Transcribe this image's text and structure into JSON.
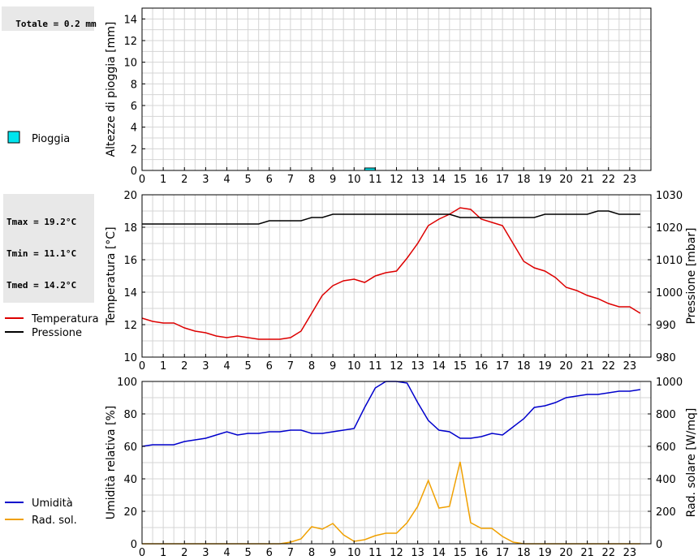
{
  "info": {
    "rain_total": "Totale = 0.2 mm",
    "temp_stats": [
      "Tmax = 19.2°C",
      "Tmin = 11.1°C",
      "Tmed = 14.2°C"
    ]
  },
  "chart_data": [
    {
      "type": "bar",
      "ylabel": "Altezze di pioggia [mm]",
      "xlim": [
        0,
        24
      ],
      "ylim": [
        0,
        15
      ],
      "yticks": [
        0,
        2,
        4,
        6,
        8,
        10,
        12,
        14
      ],
      "xticks": [
        "0",
        "1",
        "2",
        "3",
        "4",
        "5",
        "6",
        "7",
        "8",
        "9",
        "10",
        "11",
        "12",
        "13",
        "14",
        "15",
        "16",
        "17",
        "18",
        "19",
        "20",
        "21",
        "22",
        "23"
      ],
      "grid": true,
      "legend": "left",
      "series": [
        {
          "name": "Pioggia",
          "color": "#00e5ee",
          "bars": [
            {
              "x": 10.75,
              "width": 0.5,
              "value": 0.2
            }
          ]
        }
      ]
    },
    {
      "type": "line",
      "ylabel": "Temperatura [°C]",
      "y2label": "Pressione [mbar]",
      "xlim": [
        0,
        24
      ],
      "ylim": [
        10,
        20
      ],
      "y2lim": [
        980,
        1030
      ],
      "yticks": [
        10,
        12,
        14,
        16,
        18,
        20
      ],
      "y2ticks": [
        980,
        990,
        1000,
        1010,
        1020,
        1030
      ],
      "xticks": [
        "0",
        "1",
        "2",
        "3",
        "4",
        "5",
        "6",
        "7",
        "8",
        "9",
        "10",
        "11",
        "12",
        "13",
        "14",
        "15",
        "16",
        "17",
        "18",
        "19",
        "20",
        "21",
        "22",
        "23"
      ],
      "grid": true,
      "legend": "left",
      "series": [
        {
          "name": "Temperatura",
          "color": "#dd0000",
          "axis": "left",
          "x": [
            0,
            0.5,
            1,
            1.5,
            2,
            2.5,
            3,
            3.5,
            4,
            4.5,
            5,
            5.5,
            6,
            6.5,
            7,
            7.5,
            8,
            8.5,
            9,
            9.5,
            10,
            10.5,
            11,
            11.5,
            12,
            12.5,
            13,
            13.5,
            14,
            14.5,
            15,
            15.5,
            16,
            16.5,
            17,
            17.5,
            18,
            18.5,
            19,
            19.5,
            20,
            20.5,
            21,
            21.5,
            22,
            22.5,
            23,
            23.5
          ],
          "values": [
            12.4,
            12.2,
            12.1,
            12.1,
            11.8,
            11.6,
            11.5,
            11.3,
            11.2,
            11.3,
            11.2,
            11.1,
            11.1,
            11.1,
            11.2,
            11.6,
            12.7,
            13.8,
            14.4,
            14.7,
            14.8,
            14.6,
            15.0,
            15.2,
            15.3,
            16.1,
            17.0,
            18.1,
            18.5,
            18.8,
            19.2,
            19.1,
            18.5,
            18.3,
            18.1,
            17.0,
            15.9,
            15.5,
            15.3,
            14.9,
            14.3,
            14.1,
            13.8,
            13.6,
            13.3,
            13.1,
            13.1,
            12.7
          ]
        },
        {
          "name": "Pressione",
          "color": "#000000",
          "axis": "right",
          "x": [
            0,
            1,
            2,
            3,
            4,
            5,
            5.5,
            6,
            7,
            7.5,
            8,
            8.5,
            9,
            10,
            11,
            12,
            13,
            14,
            14.5,
            15,
            16,
            17,
            18,
            18.5,
            19,
            20,
            21,
            21.5,
            22,
            22.5,
            23,
            23.5
          ],
          "values": [
            1021,
            1021,
            1021,
            1021,
            1021,
            1021,
            1021,
            1022,
            1022,
            1022,
            1023,
            1023,
            1024,
            1024,
            1024,
            1024,
            1024,
            1024,
            1024,
            1023,
            1023,
            1023,
            1023,
            1023,
            1024,
            1024,
            1024,
            1025,
            1025,
            1024,
            1024,
            1024
          ]
        }
      ]
    },
    {
      "type": "line",
      "ylabel": "Umidità relativa [%]",
      "y2label": "Rad. solare [W/mq]",
      "xlim": [
        0,
        24
      ],
      "ylim": [
        0,
        100
      ],
      "y2lim": [
        0,
        1000
      ],
      "yticks": [
        0,
        20,
        40,
        60,
        80,
        100
      ],
      "y2ticks": [
        0,
        200,
        400,
        600,
        800,
        1000
      ],
      "xticks": [
        "0",
        "1",
        "2",
        "3",
        "4",
        "5",
        "6",
        "7",
        "8",
        "9",
        "10",
        "11",
        "12",
        "13",
        "14",
        "15",
        "16",
        "17",
        "18",
        "19",
        "20",
        "21",
        "22",
        "23"
      ],
      "grid": true,
      "legend": "left",
      "series": [
        {
          "name": "Umidità",
          "color": "#0000cc",
          "axis": "left",
          "x": [
            0,
            0.5,
            1,
            1.5,
            2,
            2.5,
            3,
            3.5,
            4,
            4.5,
            5,
            5.5,
            6,
            6.5,
            7,
            7.5,
            8,
            8.5,
            9,
            9.5,
            10,
            10.5,
            11,
            11.5,
            12,
            12.5,
            13,
            13.5,
            14,
            14.5,
            15,
            15.5,
            16,
            16.5,
            17,
            17.5,
            18,
            18.5,
            19,
            19.5,
            20,
            20.5,
            21,
            21.5,
            22,
            22.5,
            23,
            23.5
          ],
          "values": [
            60,
            61,
            61,
            61,
            63,
            64,
            65,
            67,
            69,
            67,
            68,
            68,
            69,
            69,
            70,
            70,
            68,
            68,
            69,
            70,
            71,
            84,
            96,
            100,
            100,
            99,
            87,
            76,
            70,
            69,
            65,
            65,
            66,
            68,
            67,
            72,
            77,
            84,
            85,
            87,
            90,
            91,
            92,
            92,
            93,
            94,
            94,
            95
          ]
        },
        {
          "name": "Rad. sol.",
          "color": "#f0a000",
          "axis": "right",
          "x": [
            0,
            0.5,
            1,
            1.5,
            2,
            2.5,
            3,
            3.5,
            4,
            4.5,
            5,
            5.5,
            6,
            6.5,
            7,
            7.5,
            8,
            8.5,
            9,
            9.5,
            10,
            10.5,
            11,
            11.5,
            12,
            12.5,
            13,
            13.5,
            14,
            14.5,
            15,
            15.5,
            16,
            16.5,
            17,
            17.5,
            18,
            18.5,
            19,
            19.5,
            20,
            20.5,
            21,
            21.5,
            22,
            22.5,
            23,
            23.5
          ],
          "values": [
            0,
            0,
            0,
            0,
            0,
            0,
            0,
            0,
            0,
            0,
            0,
            0,
            0,
            0,
            10,
            30,
            105,
            90,
            125,
            55,
            15,
            25,
            50,
            65,
            65,
            130,
            230,
            390,
            220,
            230,
            505,
            130,
            95,
            95,
            45,
            10,
            0,
            0,
            0,
            0,
            0,
            0,
            0,
            0,
            0,
            0,
            0,
            0
          ]
        }
      ]
    }
  ]
}
